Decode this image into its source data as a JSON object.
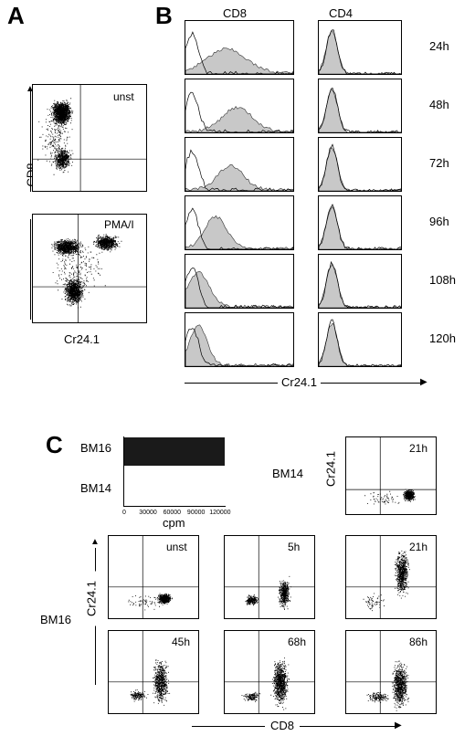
{
  "panels": {
    "a": {
      "letter": "A",
      "y_label": "CD8",
      "x_label": "Cr24.1",
      "plots": [
        {
          "label": "unst"
        },
        {
          "label": "PMA/I"
        }
      ]
    },
    "b": {
      "letter": "B",
      "col_labels": [
        "CD8",
        "CD4"
      ],
      "times": [
        "24h",
        "48h",
        "72h",
        "96h",
        "108h",
        "120h"
      ],
      "x_label": "Cr24.1"
    },
    "c": {
      "letter": "C",
      "bar_chart": {
        "categories": [
          "BM16",
          "BM14"
        ],
        "x_label": "cpm",
        "ticks": [
          "0",
          "30000",
          "60000",
          "90000",
          "120000"
        ]
      },
      "bm14_label": "BM14",
      "bm14_plot": "21h",
      "bm16_label": "BM16",
      "y_label": "Cr24.1",
      "x_label": "CD8",
      "bm16_plots": [
        "unst",
        "5h",
        "21h",
        "45h",
        "68h",
        "86h"
      ]
    }
  },
  "chart_data": {
    "type": "bar",
    "categories": [
      "BM16",
      "BM14"
    ],
    "values": [
      125000,
      0
    ],
    "xlabel": "cpm",
    "xlim": [
      0,
      130000
    ],
    "colors": [
      "#1a1a1a"
    ]
  }
}
